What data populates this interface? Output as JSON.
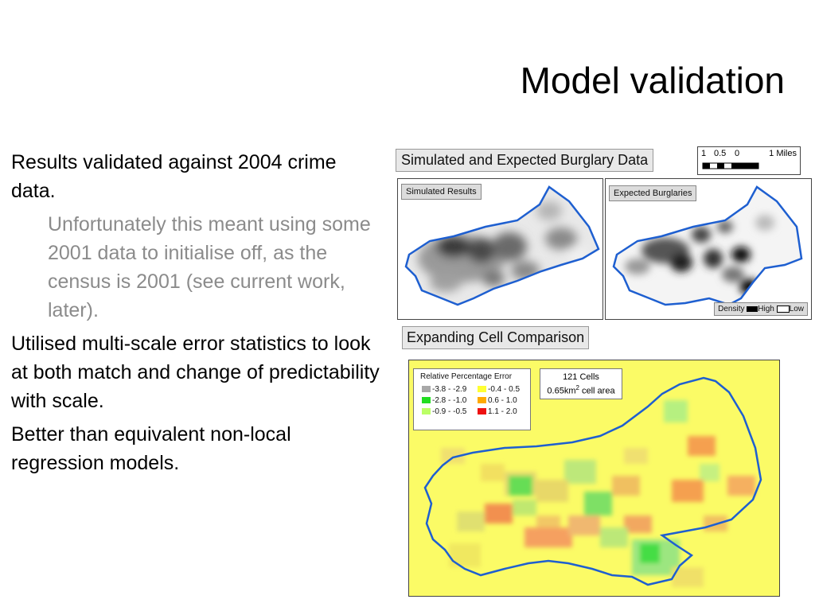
{
  "slide": {
    "title": "Model validation",
    "bullets": [
      {
        "level": 1,
        "text": "Results validated against 2004 crime data."
      },
      {
        "level": 2,
        "text": "Unfortunately this meant using some 2001 data to initialise off, as the census is 2001 (see current work, later)."
      },
      {
        "level": 1,
        "text": "Utilised multi-scale error statistics to look at both match and change of predictability with scale."
      },
      {
        "level": 1,
        "text": "Better than equivalent non-local regression models."
      }
    ]
  },
  "figure": {
    "top_heading": "Simulated and Expected Burglary Data",
    "scale_bar": {
      "ticks": [
        "1",
        "0.5",
        "0"
      ],
      "unit_label": "1 Miles"
    },
    "left_map_label": "Simulated Results",
    "right_map_label": "Expected Burglaries",
    "density_legend": {
      "label": "Density",
      "high": "High",
      "low": "Low"
    },
    "bottom_heading": "Expanding Cell Comparison",
    "error_legend": {
      "title": "Relative Percentage Error",
      "entries": [
        {
          "range": "-3.8 - -2.9",
          "color": "#a8a8a8"
        },
        {
          "range": "-0.4 - 0.5",
          "color": "#ffff33"
        },
        {
          "range": "-2.8 - -1.0",
          "color": "#22dd22"
        },
        {
          "range": "0.6 - 1.0",
          "color": "#ffaa00"
        },
        {
          "range": "-0.9 - -0.5",
          "color": "#bbff66"
        },
        {
          "range": "1.1 - 2.0",
          "color": "#ee1111"
        }
      ]
    },
    "cells_info": {
      "line1": "121 Cells",
      "line2_value": "0.65km",
      "line2_sup": "2",
      "line2_rest": " cell area"
    }
  }
}
